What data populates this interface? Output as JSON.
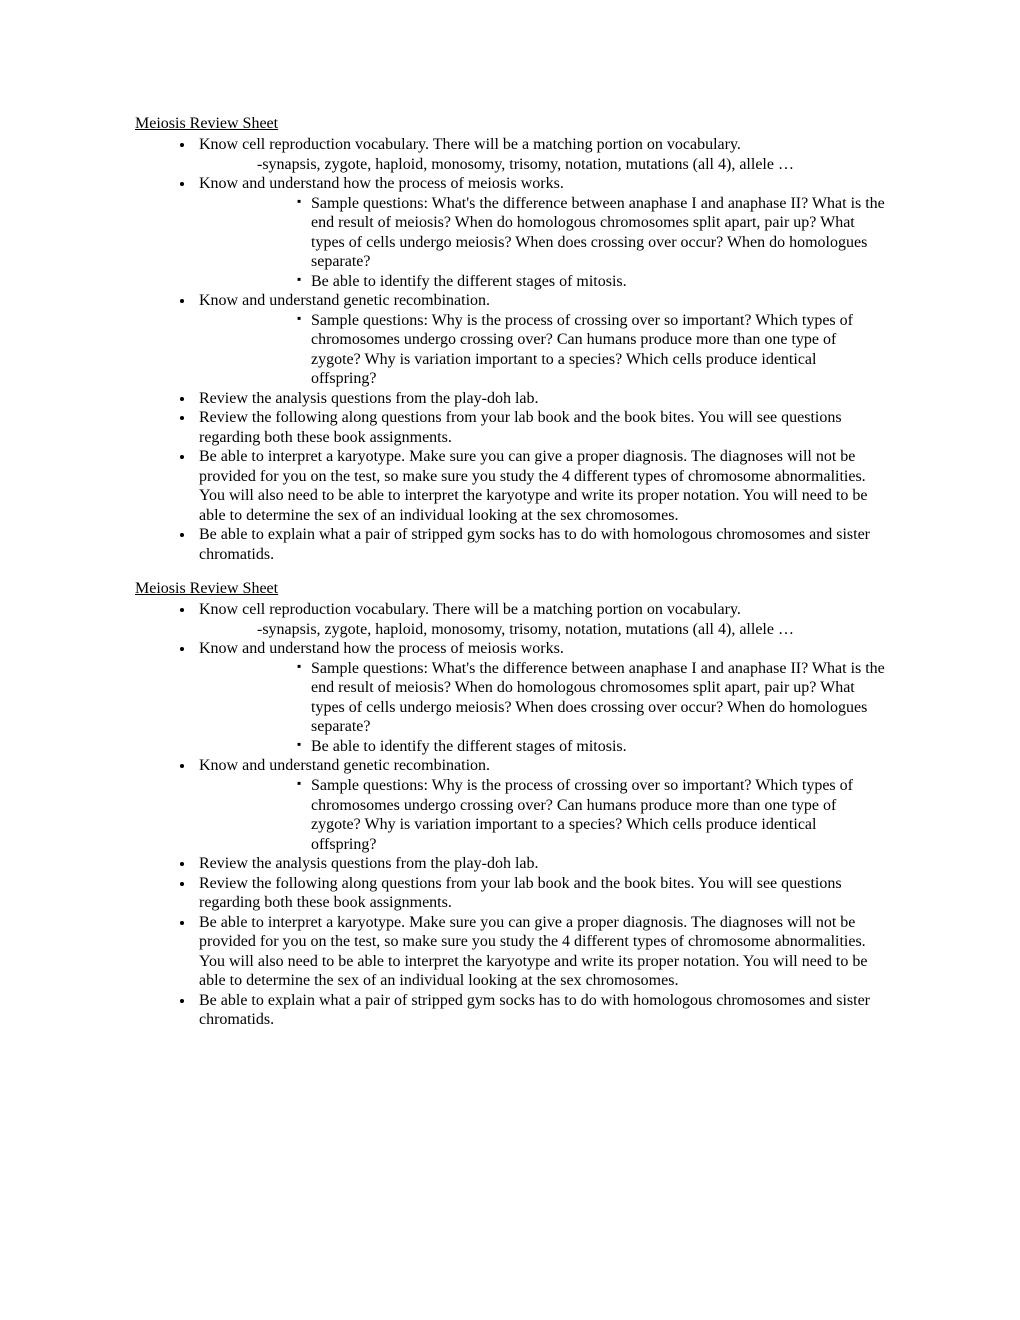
{
  "sections": [
    {
      "title": "Meiosis Review Sheet",
      "items": [
        {
          "text": "Know cell reproduction vocabulary.  There will be a matching portion on vocabulary.",
          "sub": "-synapsis, zygote, haploid, monosomy, trisomy, notation, mutations (all 4), allele …"
        },
        {
          "text": "Know and understand how the process of meiosis works.",
          "children": [
            "Sample questions:  What's the difference between anaphase I and anaphase II?  What is the end result of meiosis?  When do homologous chromosomes split apart, pair up?  What types of cells undergo meiosis?  When does crossing over occur?  When do homologues separate?",
            "Be able to identify the different stages of mitosis."
          ]
        },
        {
          "text": "Know and understand genetic recombination.",
          "children": [
            "Sample questions:  Why is the process of crossing over so important?  Which types of chromosomes undergo crossing over?  Can humans produce more than one type of zygote?  Why is variation important to a species?  Which cells produce identical offspring?"
          ]
        },
        {
          "text": "Review the analysis questions from the play-doh lab."
        },
        {
          "text": "Review the following along questions from your lab book and the book bites.  You will see questions regarding both these book assignments."
        },
        {
          "text": "Be able to interpret a karyotype.  Make sure you can give a proper diagnosis.  The diagnoses will not be provided for you on the test, so make sure you study the 4 different types of chromosome abnormalities.  You will also need to be able to interpret the karyotype and write its proper notation.  You will need to be able to determine the sex of an individual looking at the sex chromosomes."
        },
        {
          "text": "Be able to explain what a pair of stripped gym socks has to do with homologous chromosomes and sister chromatids."
        }
      ]
    },
    {
      "title": "Meiosis Review Sheet",
      "items": [
        {
          "text": "Know cell reproduction vocabulary.  There will be a matching portion on vocabulary.",
          "sub": "-synapsis, zygote, haploid, monosomy, trisomy, notation, mutations (all 4), allele …"
        },
        {
          "text": "Know and understand how the process of meiosis works.",
          "children": [
            "Sample questions:  What's the difference between anaphase I and anaphase II?  What is the end result of meiosis?  When do homologous chromosomes split apart, pair up?  What types of cells undergo meiosis?  When does crossing over occur?  When do homologues separate?",
            "Be able to identify the different stages of mitosis."
          ]
        },
        {
          "text": "Know and understand genetic recombination.",
          "children": [
            "Sample questions:  Why is the process of crossing over so important?  Which types of chromosomes undergo crossing over?  Can humans produce more than one type of zygote?  Why is variation important to a species?  Which cells produce identical offspring?"
          ]
        },
        {
          "text": "Review the analysis questions from the play-doh lab."
        },
        {
          "text": "Review the following along questions from your lab book and the book bites.  You will see questions regarding both these book assignments."
        },
        {
          "text": "Be able to interpret a karyotype.  Make sure you can give a proper diagnosis.  The diagnoses will not be provided for you on the test, so make sure you study the 4 different types of chromosome abnormalities.  You will also need to be able to interpret the karyotype and write its proper notation.  You will need to be able to determine the sex of an individual looking at the sex chromosomes."
        },
        {
          "text": "Be able to explain what a pair of stripped gym socks has to do with homologous chromosomes and sister chromatids."
        }
      ]
    }
  ]
}
